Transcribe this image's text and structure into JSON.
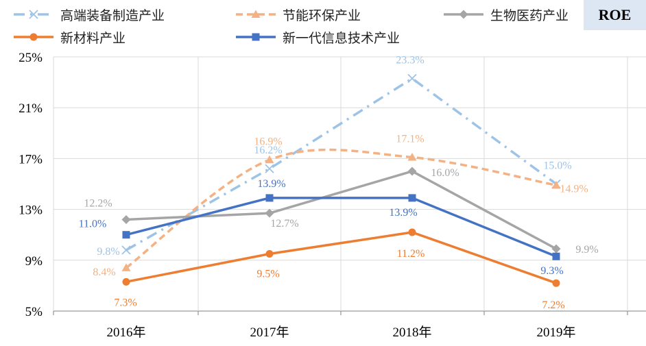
{
  "badge": "ROE",
  "chart_data": {
    "type": "line",
    "categories": [
      "2016年",
      "2017年",
      "2018年",
      "2019年"
    ],
    "ylim": [
      5,
      25
    ],
    "yticks": [
      "5%",
      "9%",
      "13%",
      "17%",
      "21%",
      "25%"
    ],
    "ytick_values": [
      5,
      9,
      13,
      17,
      21,
      25
    ],
    "grid": true,
    "legend_position": "top",
    "series": [
      {
        "name": "高端装备制造产业",
        "values": [
          9.8,
          16.2,
          23.3,
          15.0
        ],
        "labels": [
          "9.8%",
          "16.2%",
          "23.3%",
          "15.0%"
        ],
        "color": "#9dc3e6",
        "dash": "dashdot",
        "marker": "x"
      },
      {
        "name": "节能环保产业",
        "values": [
          8.4,
          16.9,
          17.1,
          14.9
        ],
        "labels": [
          "8.4%",
          "16.9%",
          "17.1%",
          "14.9%"
        ],
        "color": "#f4b183",
        "dash": "dash",
        "marker": "triangle"
      },
      {
        "name": "生物医药产业",
        "values": [
          12.2,
          12.7,
          16.0,
          9.9
        ],
        "labels": [
          "12.2%",
          "12.7%",
          "16.0%",
          "9.9%"
        ],
        "color": "#a5a5a5",
        "dash": "solid",
        "marker": "diamond"
      },
      {
        "name": "新材料产业",
        "values": [
          7.3,
          9.5,
          11.2,
          7.2
        ],
        "labels": [
          "7.3%",
          "9.5%",
          "11.2%",
          "7.2%"
        ],
        "color": "#ed7d31",
        "dash": "solid",
        "marker": "circle"
      },
      {
        "name": "新一代信息技术产业",
        "values": [
          11.0,
          13.9,
          13.9,
          9.3
        ],
        "labels": [
          "11.0%",
          "13.9%",
          "13.9%",
          "9.3%"
        ],
        "color": "#4472c4",
        "dash": "solid",
        "marker": "square"
      }
    ]
  }
}
